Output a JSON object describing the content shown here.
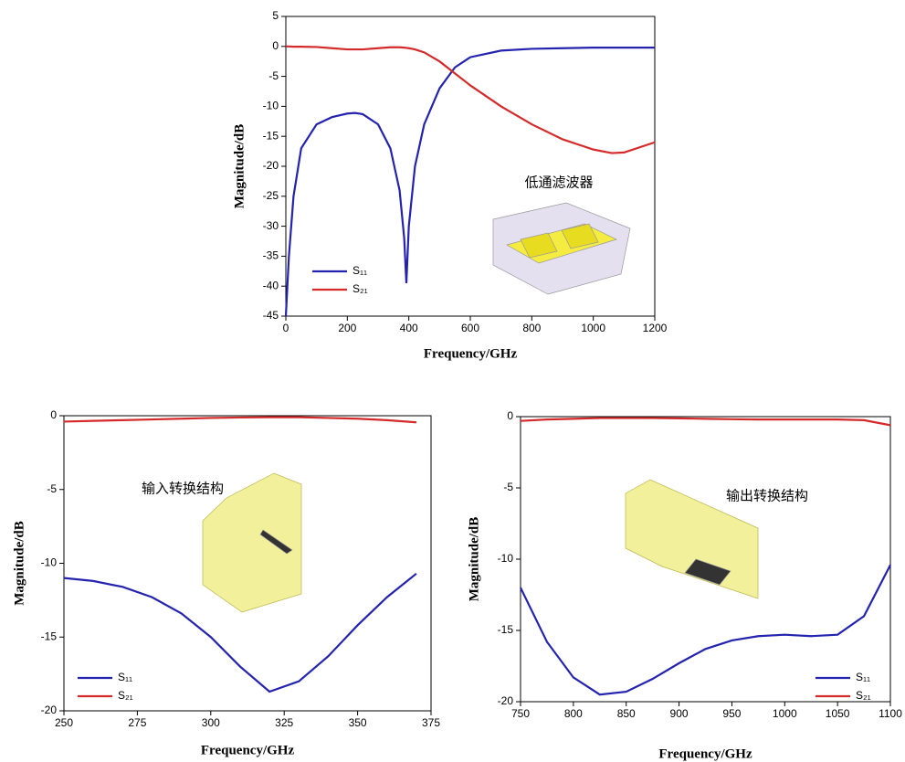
{
  "chart_data": [
    {
      "type": "line",
      "x_label": "Frequency/GHz",
      "y_label": "Magnitude/dB",
      "annotation": "低通滤波器",
      "x": [
        0,
        10,
        25,
        50,
        100,
        150,
        200,
        225,
        250,
        300,
        340,
        370,
        385,
        392,
        400,
        420,
        450,
        500,
        550,
        600,
        700,
        800,
        900,
        1000,
        1060,
        1100,
        1200
      ],
      "series": [
        {
          "name": "S₁₁",
          "color": "#2323b0",
          "values": [
            -45,
            -35,
            -25,
            -17,
            -13,
            -11.8,
            -11.2,
            -11.1,
            -11.3,
            -13,
            -17,
            -24,
            -32,
            -39.5,
            -30,
            -20,
            -13,
            -7,
            -3.5,
            -1.8,
            -0.7,
            -0.4,
            -0.3,
            -0.2,
            -0.2,
            -0.2,
            -0.2
          ]
        },
        {
          "name": "S₂₁",
          "color": "#d42a2a",
          "values": [
            0,
            0,
            -0.05,
            -0.05,
            -0.1,
            -0.3,
            -0.5,
            -0.5,
            -0.5,
            -0.3,
            -0.15,
            -0.15,
            -0.2,
            -0.25,
            -0.3,
            -0.5,
            -1,
            -2.5,
            -4.5,
            -6.5,
            -10,
            -13,
            -15.5,
            -17.2,
            -17.8,
            -17.7,
            -16
          ]
        }
      ],
      "xlim": [
        0,
        1200
      ],
      "xticks": [
        0,
        200,
        400,
        600,
        800,
        1000,
        1200
      ],
      "ylim": [
        -45,
        5
      ],
      "yticks": [
        5,
        0,
        -5,
        -10,
        -15,
        -20,
        -25,
        -30,
        -35,
        -40,
        -45
      ],
      "legend": "lower left"
    },
    {
      "type": "line",
      "x_label": "Frequency/GHz",
      "y_label": "Magnitude/dB",
      "annotation": "输入转换结构",
      "x": [
        250,
        260,
        270,
        280,
        290,
        300,
        310,
        320,
        330,
        340,
        350,
        360,
        370
      ],
      "series": [
        {
          "name": "S₁₁",
          "color": "#2323b0",
          "values": [
            -11,
            -11.2,
            -11.6,
            -12.3,
            -13.4,
            -15,
            -17,
            -18.7,
            -18,
            -16.3,
            -14.2,
            -12.3,
            -10.7
          ]
        },
        {
          "name": "S₂₁",
          "color": "#d42a2a",
          "values": [
            -0.4,
            -0.35,
            -0.3,
            -0.25,
            -0.2,
            -0.15,
            -0.12,
            -0.1,
            -0.1,
            -0.15,
            -0.2,
            -0.3,
            -0.45
          ]
        }
      ],
      "xlim": [
        250,
        375
      ],
      "xticks": [
        250,
        275,
        300,
        325,
        350,
        375
      ],
      "ylim": [
        -20,
        0
      ],
      "yticks": [
        0,
        -5,
        -10,
        -15,
        -20
      ],
      "legend": "lower left"
    },
    {
      "type": "line",
      "x_label": "Frequency/GHz",
      "y_label": "Magnitude/dB",
      "annotation": "输出转换结构",
      "x": [
        750,
        775,
        800,
        825,
        850,
        875,
        900,
        925,
        950,
        975,
        1000,
        1025,
        1050,
        1075,
        1100
      ],
      "series": [
        {
          "name": "S₁₁",
          "color": "#2323b0",
          "values": [
            -12,
            -15.8,
            -18.3,
            -19.5,
            -19.3,
            -18.4,
            -17.3,
            -16.3,
            -15.7,
            -15.4,
            -15.3,
            -15.4,
            -15.3,
            -14,
            -10.4
          ]
        },
        {
          "name": "S₂₁",
          "color": "#d42a2a",
          "values": [
            -0.3,
            -0.2,
            -0.15,
            -0.1,
            -0.1,
            -0.1,
            -0.12,
            -0.15,
            -0.18,
            -0.2,
            -0.2,
            -0.2,
            -0.2,
            -0.25,
            -0.6
          ]
        }
      ],
      "xlim": [
        750,
        1100
      ],
      "xticks": [
        750,
        800,
        850,
        900,
        950,
        1000,
        1050,
        1100
      ],
      "ylim": [
        -20,
        0
      ],
      "yticks": [
        0,
        -5,
        -10,
        -15,
        -20
      ],
      "legend": "lower right"
    }
  ]
}
